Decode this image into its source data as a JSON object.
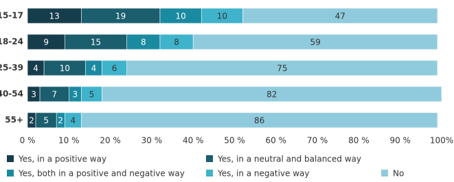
{
  "chart_data": {
    "type": "stacked-bar-horizontal",
    "categories": [
      "15-17",
      "18-24",
      "25-39",
      "40-54",
      "55+"
    ],
    "series": [
      {
        "name": "Yes, in a positive way",
        "color": "#163d4c",
        "values": [
          13,
          9,
          4,
          3,
          2
        ]
      },
      {
        "name": "Yes, in a neutral and balanced way",
        "color": "#1b5e6e",
        "values": [
          19,
          15,
          10,
          7,
          5
        ]
      },
      {
        "name": "Yes, both in a positive and negative way",
        "color": "#1a8aa0",
        "values": [
          10,
          8,
          4,
          3,
          2
        ]
      },
      {
        "name": "Yes, in a negative way",
        "color": "#3fb3cb",
        "values": [
          10,
          8,
          6,
          5,
          4
        ]
      },
      {
        "name": "No",
        "color": "#8fcbdc",
        "values": [
          47,
          59,
          75,
          82,
          86
        ]
      }
    ],
    "xlim": [
      0,
      100
    ],
    "xticks": [
      {
        "value": 0,
        "label": "0 %"
      },
      {
        "value": 10,
        "label": "10 %"
      },
      {
        "value": 20,
        "label": "20 %"
      },
      {
        "value": 30,
        "label": "30 %"
      },
      {
        "value": 40,
        "label": "40 %"
      },
      {
        "value": 50,
        "label": "50 %"
      },
      {
        "value": 60,
        "label": "60 %"
      },
      {
        "value": 70,
        "label": "70 %"
      },
      {
        "value": 80,
        "label": "80 %"
      },
      {
        "value": 90,
        "label": "90 %"
      },
      {
        "value": 100,
        "label": "100%"
      }
    ]
  }
}
